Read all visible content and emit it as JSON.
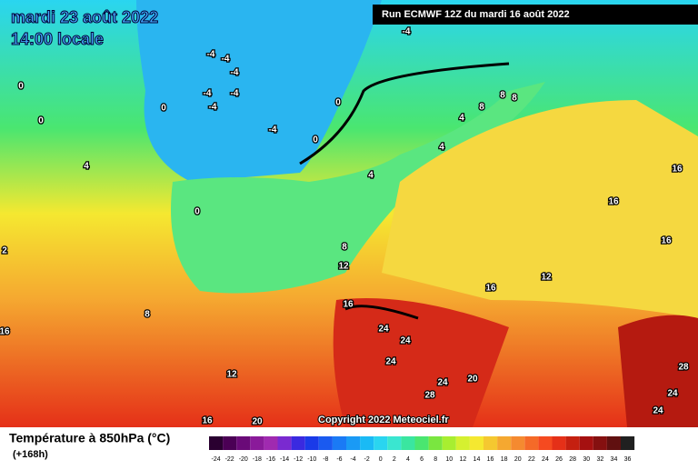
{
  "header": {
    "date": "mardi 23 août 2022",
    "time": "14:00 locale",
    "run": "Run ECMWF 12Z du mardi 16 août 2022"
  },
  "map": {
    "copyright": "Copyright 2022 Meteociel.fr",
    "labels": [
      -4,
      -4,
      -4,
      -4,
      -4,
      -4,
      -4,
      -4,
      0,
      0,
      0,
      0,
      0,
      0,
      4,
      4,
      4,
      4,
      8,
      8,
      8,
      8,
      8,
      12,
      12,
      12,
      16,
      16,
      16,
      16,
      16,
      16,
      16,
      20,
      20,
      24,
      24,
      24,
      24,
      24,
      24,
      28,
      28,
      2
    ]
  },
  "legend": {
    "title": "Température à 850hPa (°C)",
    "lead_time": "(+168h)",
    "ticks": [
      -24,
      -22,
      -20,
      -18,
      -16,
      -14,
      -12,
      -10,
      -8,
      -6,
      -4,
      -2,
      0,
      2,
      4,
      6,
      8,
      10,
      12,
      14,
      16,
      18,
      20,
      22,
      24,
      26,
      28,
      30,
      32,
      34,
      36
    ],
    "colors": [
      "#2a0030",
      "#4b0055",
      "#6a0a78",
      "#8a1a9a",
      "#a02ab0",
      "#7a2ad0",
      "#3a2ae0",
      "#1a3ae8",
      "#1a5af0",
      "#1a7af5",
      "#1a9af5",
      "#1abaf5",
      "#2ad5f0",
      "#3ae6d0",
      "#3ae6a0",
      "#4ae670",
      "#7ae640",
      "#a8ee30",
      "#d5f030",
      "#f5e830",
      "#f5c830",
      "#f5a830",
      "#f58a30",
      "#f56a28",
      "#f54a20",
      "#e53018",
      "#c52010",
      "#a51010",
      "#851010",
      "#601010",
      "#202020"
    ]
  }
}
